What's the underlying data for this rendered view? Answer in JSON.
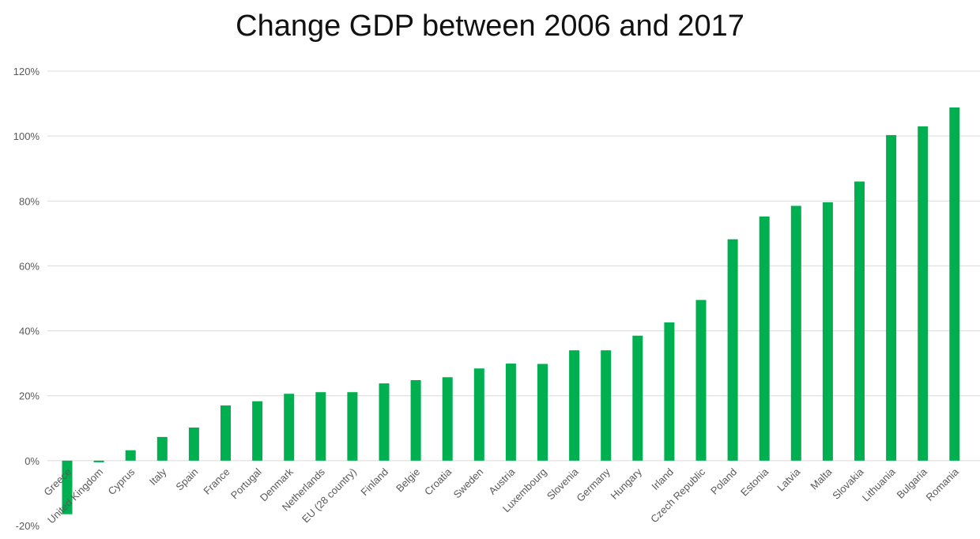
{
  "chart_data": {
    "type": "bar",
    "title": "Change GDP between 2006 and 2017",
    "xlabel": "",
    "ylabel": "",
    "ylim": [
      -20,
      120
    ],
    "yticks": [
      "120%",
      "100%",
      "80%",
      "60%",
      "40%",
      "20%",
      "0%",
      "-20%"
    ],
    "ytick_values": [
      120,
      100,
      80,
      60,
      40,
      20,
      0,
      -20
    ],
    "grid": true,
    "legend": "none",
    "bar_color": "#00b050",
    "categories": [
      "Greece",
      "United Kingdom",
      "Cyprus",
      "Italy",
      "Spain",
      "France",
      "Portugal",
      "Denmark",
      "Netherlands",
      "EU (28 country)",
      "Finland",
      "Belgie",
      "Croatia",
      "Sweden",
      "Austria",
      "Luxembourg",
      "Slovenia",
      "Germany",
      "Hungary",
      "Irland",
      "Czech Republic",
      "Poland",
      "Estonia",
      "Latvia",
      "Malta",
      "Slovakia",
      "Lithuania",
      "Bulgaria",
      "Romania"
    ],
    "values": [
      -16.5,
      -0.5,
      3.2,
      7.3,
      10.2,
      17,
      18.3,
      20.6,
      21.1,
      21.1,
      23.8,
      24.8,
      25.7,
      28.4,
      29.9,
      29.8,
      34,
      34,
      38.5,
      42.6,
      49.5,
      68.2,
      75.2,
      78.5,
      79.6,
      86,
      100.3,
      103,
      108.8
    ]
  }
}
